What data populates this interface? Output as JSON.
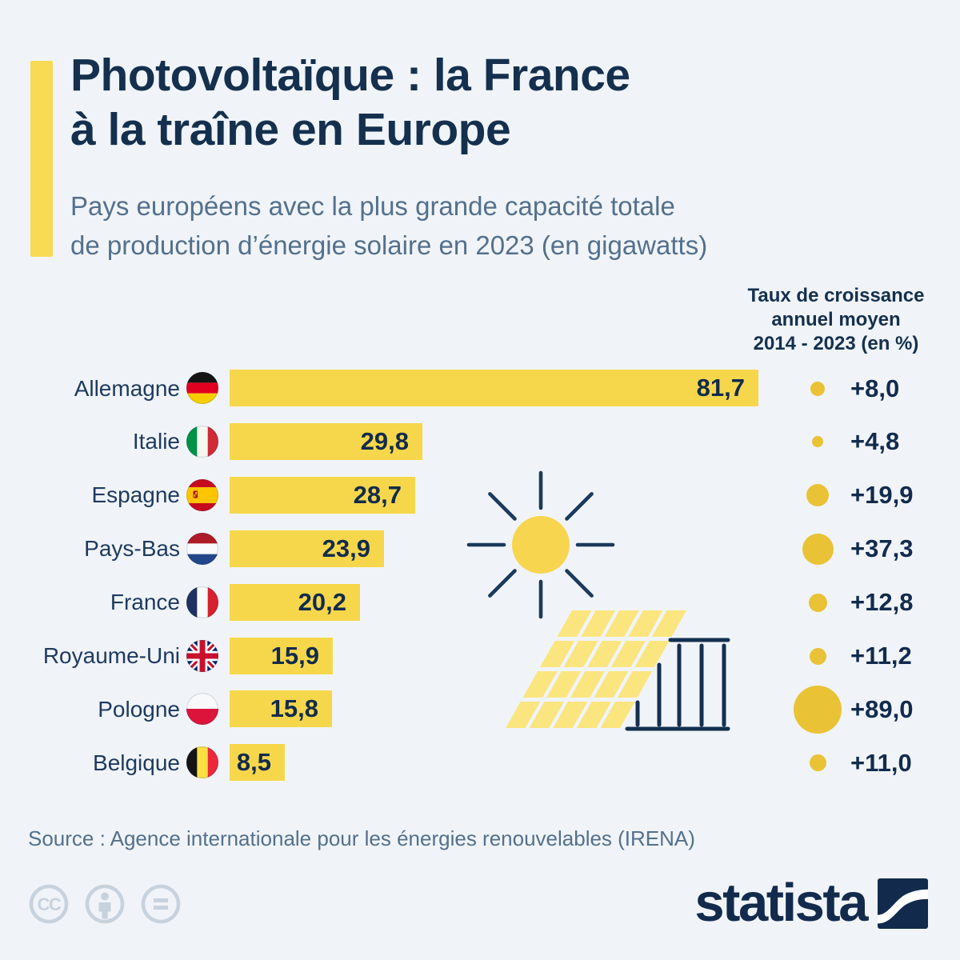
{
  "title": {
    "line1": "Photovoltaïque : la France",
    "line2": "à la traîne en Europe"
  },
  "subtitle": {
    "line1": "Pays européens avec la plus grande capacité totale",
    "line2": "de production d’énergie solaire en 2023 (en gigawatts)"
  },
  "growth_header": {
    "line1": "Taux de croissance",
    "line2": "annuel moyen",
    "line3": "2014 - 2023 (en %)"
  },
  "chart_data": {
    "type": "bar",
    "orientation": "horizontal",
    "title": "Pays européens avec la plus grande capacité totale de production d’énergie solaire en 2023 (en gigawatts)",
    "unit": "gigawatts",
    "xlim": [
      0,
      85
    ],
    "grid": false,
    "legend": "none",
    "categories": [
      "Allemagne",
      "Italie",
      "Espagne",
      "Pays-Bas",
      "France",
      "Royaume-Uni",
      "Pologne",
      "Belgique"
    ],
    "flags": [
      "de",
      "it",
      "es",
      "nl",
      "fr",
      "gb",
      "pl",
      "be"
    ],
    "series": [
      {
        "name": "Capacité solaire totale 2023 (GW)",
        "values": [
          81.7,
          29.8,
          28.7,
          23.9,
          20.2,
          15.9,
          15.8,
          8.5
        ],
        "labels": [
          "81,7",
          "29,8",
          "28,7",
          "23,9",
          "20,2",
          "15,9",
          "15,8",
          "8,5"
        ]
      },
      {
        "name": "Taux de croissance annuel moyen 2014-2023 (%)",
        "values": [
          8.0,
          4.8,
          19.9,
          37.3,
          12.8,
          11.2,
          89.0,
          11.0
        ],
        "labels": [
          "+8,0",
          "+4,8",
          "+19,9",
          "+37,3",
          "+12,8",
          "+11,2",
          "+89,0",
          "+11,0"
        ]
      }
    ]
  },
  "source": "Source : Agence internationale pour les énergies renouvelables (IRENA)",
  "footer": {
    "brand": "statista",
    "license_icons": [
      "cc",
      "by",
      "nd"
    ]
  },
  "colors": {
    "background": "#F0F4F8",
    "accent": "#F8DA54",
    "bar": "#F6D74B",
    "dot": "#E9C236",
    "panel": "#FBE57F",
    "sun": "#F7D54E",
    "line": "#1B3A5C",
    "title": "#15304E",
    "subtitle": "#54708C",
    "label": "#1E3A5F",
    "value": "#122B4D",
    "cc": "#C8D2DD"
  }
}
